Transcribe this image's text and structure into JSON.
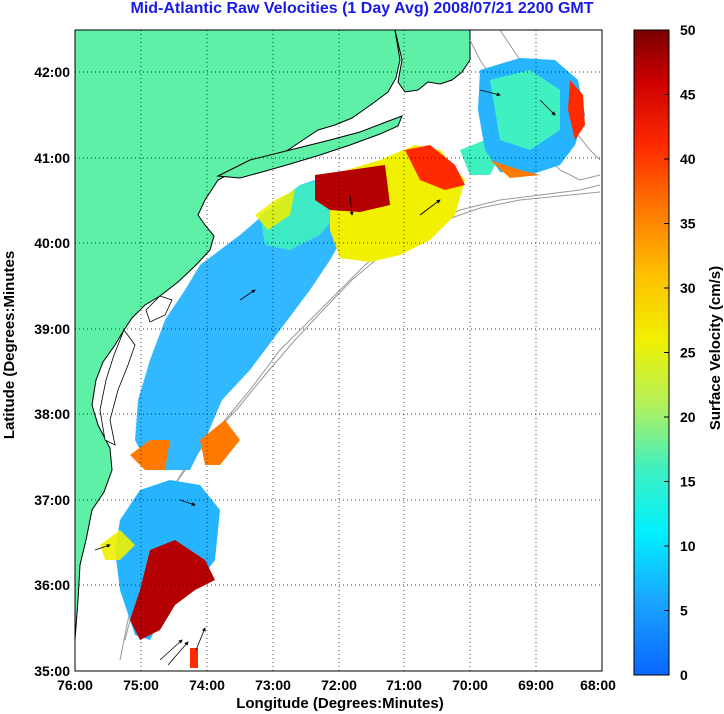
{
  "title": "Mid-Atlantic Raw Velocities (1 Day Avg) 2008/07/21 2200 GMT",
  "axes": {
    "xlabel": "Longitude (Degrees:Minutes)",
    "ylabel": "Latitude (Degrees:Minutes",
    "x_ticks": [
      "76:00",
      "75:00",
      "74:00",
      "73:00",
      "72:00",
      "71:00",
      "70:00",
      "69:00",
      "68:00"
    ],
    "y_ticks": [
      "42:00",
      "41:00",
      "40:00",
      "39:00",
      "38:00",
      "37:00",
      "36:00",
      "35:00"
    ]
  },
  "colorbar": {
    "label": "Surface Velocity (cm/s)",
    "ticks": [
      "50",
      "45",
      "40",
      "35",
      "30",
      "25",
      "20",
      "15",
      "10",
      "5",
      "0"
    ],
    "range": [
      0,
      50
    ]
  },
  "colors": {
    "land": "#5ff0a8",
    "title": "#1a1ae6",
    "grid": "#000000",
    "bathymetry": "#999999"
  }
}
